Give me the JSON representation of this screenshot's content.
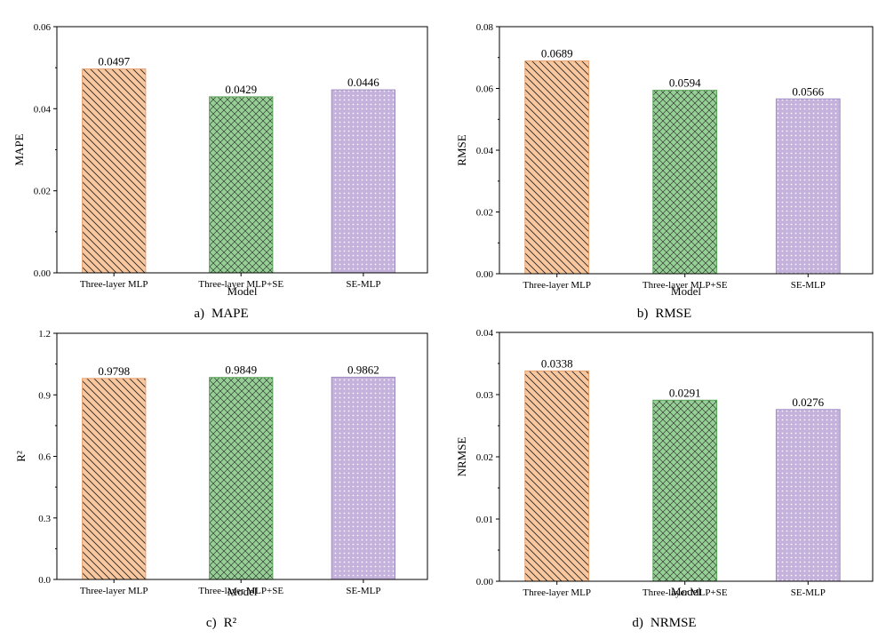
{
  "chart_data": [
    {
      "type": "bar",
      "categories": [
        "Three-layer MLP",
        "Three-layer MLP+SE",
        "SE-MLP"
      ],
      "values": [
        0.0497,
        0.0429,
        0.0446
      ],
      "value_labels": [
        "0.0497",
        "0.0429",
        "0.0446"
      ],
      "ylabel": "MAPE",
      "xlabel": "Model",
      "ylim": [
        0,
        0.06
      ],
      "yticks": [
        0.0,
        0.02,
        0.04,
        0.06
      ],
      "ytick_labels": [
        "0.00",
        "0.02",
        "0.04",
        "0.06"
      ],
      "caption_prefix": "a)",
      "caption_text": "MAPE"
    },
    {
      "type": "bar",
      "categories": [
        "Three-layer MLP",
        "Three-layer MLP+SE",
        "SE-MLP"
      ],
      "values": [
        0.0689,
        0.0594,
        0.0566
      ],
      "value_labels": [
        "0.0689",
        "0.0594",
        "0.0566"
      ],
      "ylabel": "RMSE",
      "xlabel": "Model",
      "ylim": [
        0,
        0.08
      ],
      "yticks": [
        0.0,
        0.02,
        0.04,
        0.06,
        0.08
      ],
      "ytick_labels": [
        "0.00",
        "0.02",
        "0.04",
        "0.06",
        "0.08"
      ],
      "caption_prefix": "b)",
      "caption_text": "RMSE"
    },
    {
      "type": "bar",
      "categories": [
        "Three-layer MLP",
        "Three-layer MLP+SE",
        "SE-MLP"
      ],
      "values": [
        0.9798,
        0.9849,
        0.9862
      ],
      "value_labels": [
        "0.9798",
        "0.9849",
        "0.9862"
      ],
      "ylabel": "R²",
      "xlabel": "Model",
      "ylim": [
        0,
        1.2
      ],
      "yticks": [
        0.0,
        0.3,
        0.6,
        0.9,
        1.2
      ],
      "ytick_labels": [
        "0.0",
        "0.3",
        "0.6",
        "0.9",
        "1.2"
      ],
      "caption_prefix": "c)",
      "caption_text": "R²"
    },
    {
      "type": "bar",
      "categories": [
        "Three-layer MLP",
        "Three-layer MLP+SE",
        "SE-MLP"
      ],
      "values": [
        0.0338,
        0.0291,
        0.0276
      ],
      "value_labels": [
        "0.0338",
        "0.0291",
        "0.0276"
      ],
      "ylabel": "NRMSE",
      "xlabel": "Model",
      "ylim": [
        0,
        0.04
      ],
      "yticks": [
        0.0,
        0.01,
        0.02,
        0.03,
        0.04
      ],
      "ytick_labels": [
        "0.00",
        "0.01",
        "0.02",
        "0.03",
        "0.04"
      ],
      "caption_prefix": "d)",
      "caption_text": "NRMSE"
    }
  ],
  "colors": {
    "bar_fills": [
      "#f9c79e",
      "#96cf96",
      "#c4b2dc"
    ],
    "bar_edges": [
      "#e8a06e",
      "#5aa65a",
      "#a08cc4"
    ],
    "hatch_line": "#222222",
    "dot_color": "#ffffff"
  }
}
